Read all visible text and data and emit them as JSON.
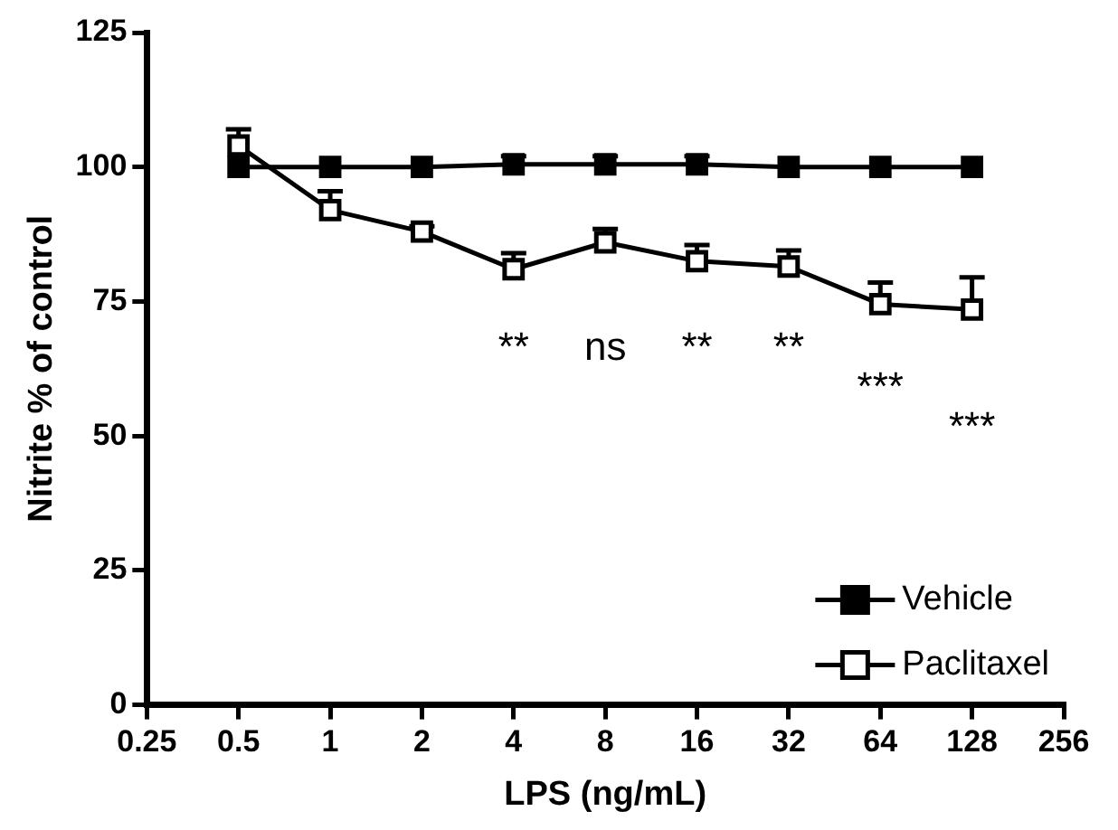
{
  "chart_data": {
    "type": "line",
    "xlabel": "LPS (ng/mL)",
    "ylabel": "Nitrite % of control",
    "log": "x",
    "x": [
      0.5,
      1,
      2,
      4,
      8,
      16,
      32,
      64,
      128
    ],
    "xlim": [
      0.25,
      256
    ],
    "xticks": [
      0.25,
      0.5,
      1,
      2,
      4,
      8,
      16,
      32,
      64,
      128,
      256
    ],
    "ylim": [
      0,
      125
    ],
    "yticks": [
      0,
      25,
      50,
      75,
      100,
      125
    ],
    "grid": false,
    "legend": "bottom right",
    "marker": "square",
    "line_style": "solid",
    "series": [
      {
        "name": "Vehicle",
        "color": "#000000",
        "values": [
          100,
          100,
          100,
          100.5,
          100.5,
          100.5,
          100,
          100,
          100
        ],
        "errors": [
          null,
          null,
          null,
          [
            100.5,
            102
          ],
          [
            100.5,
            102
          ],
          [
            100.5,
            102
          ],
          null,
          null,
          null
        ]
      },
      {
        "name": "Paclitaxel",
        "color": "#000000",
        "values": [
          104,
          92,
          88,
          81,
          86,
          82.5,
          81.5,
          74.5,
          73.5
        ],
        "errors": [
          [
            104,
            107
          ],
          [
            92,
            95.5
          ],
          [
            88,
            89
          ],
          [
            81,
            84
          ],
          [
            86,
            88.5
          ],
          [
            82.5,
            85.5
          ],
          [
            81.5,
            84.5
          ],
          [
            74.5,
            78.5
          ],
          [
            73.5,
            79.5
          ]
        ]
      }
    ],
    "annotations": [
      "**",
      "ns",
      "** **",
      "***",
      "***"
    ]
  }
}
